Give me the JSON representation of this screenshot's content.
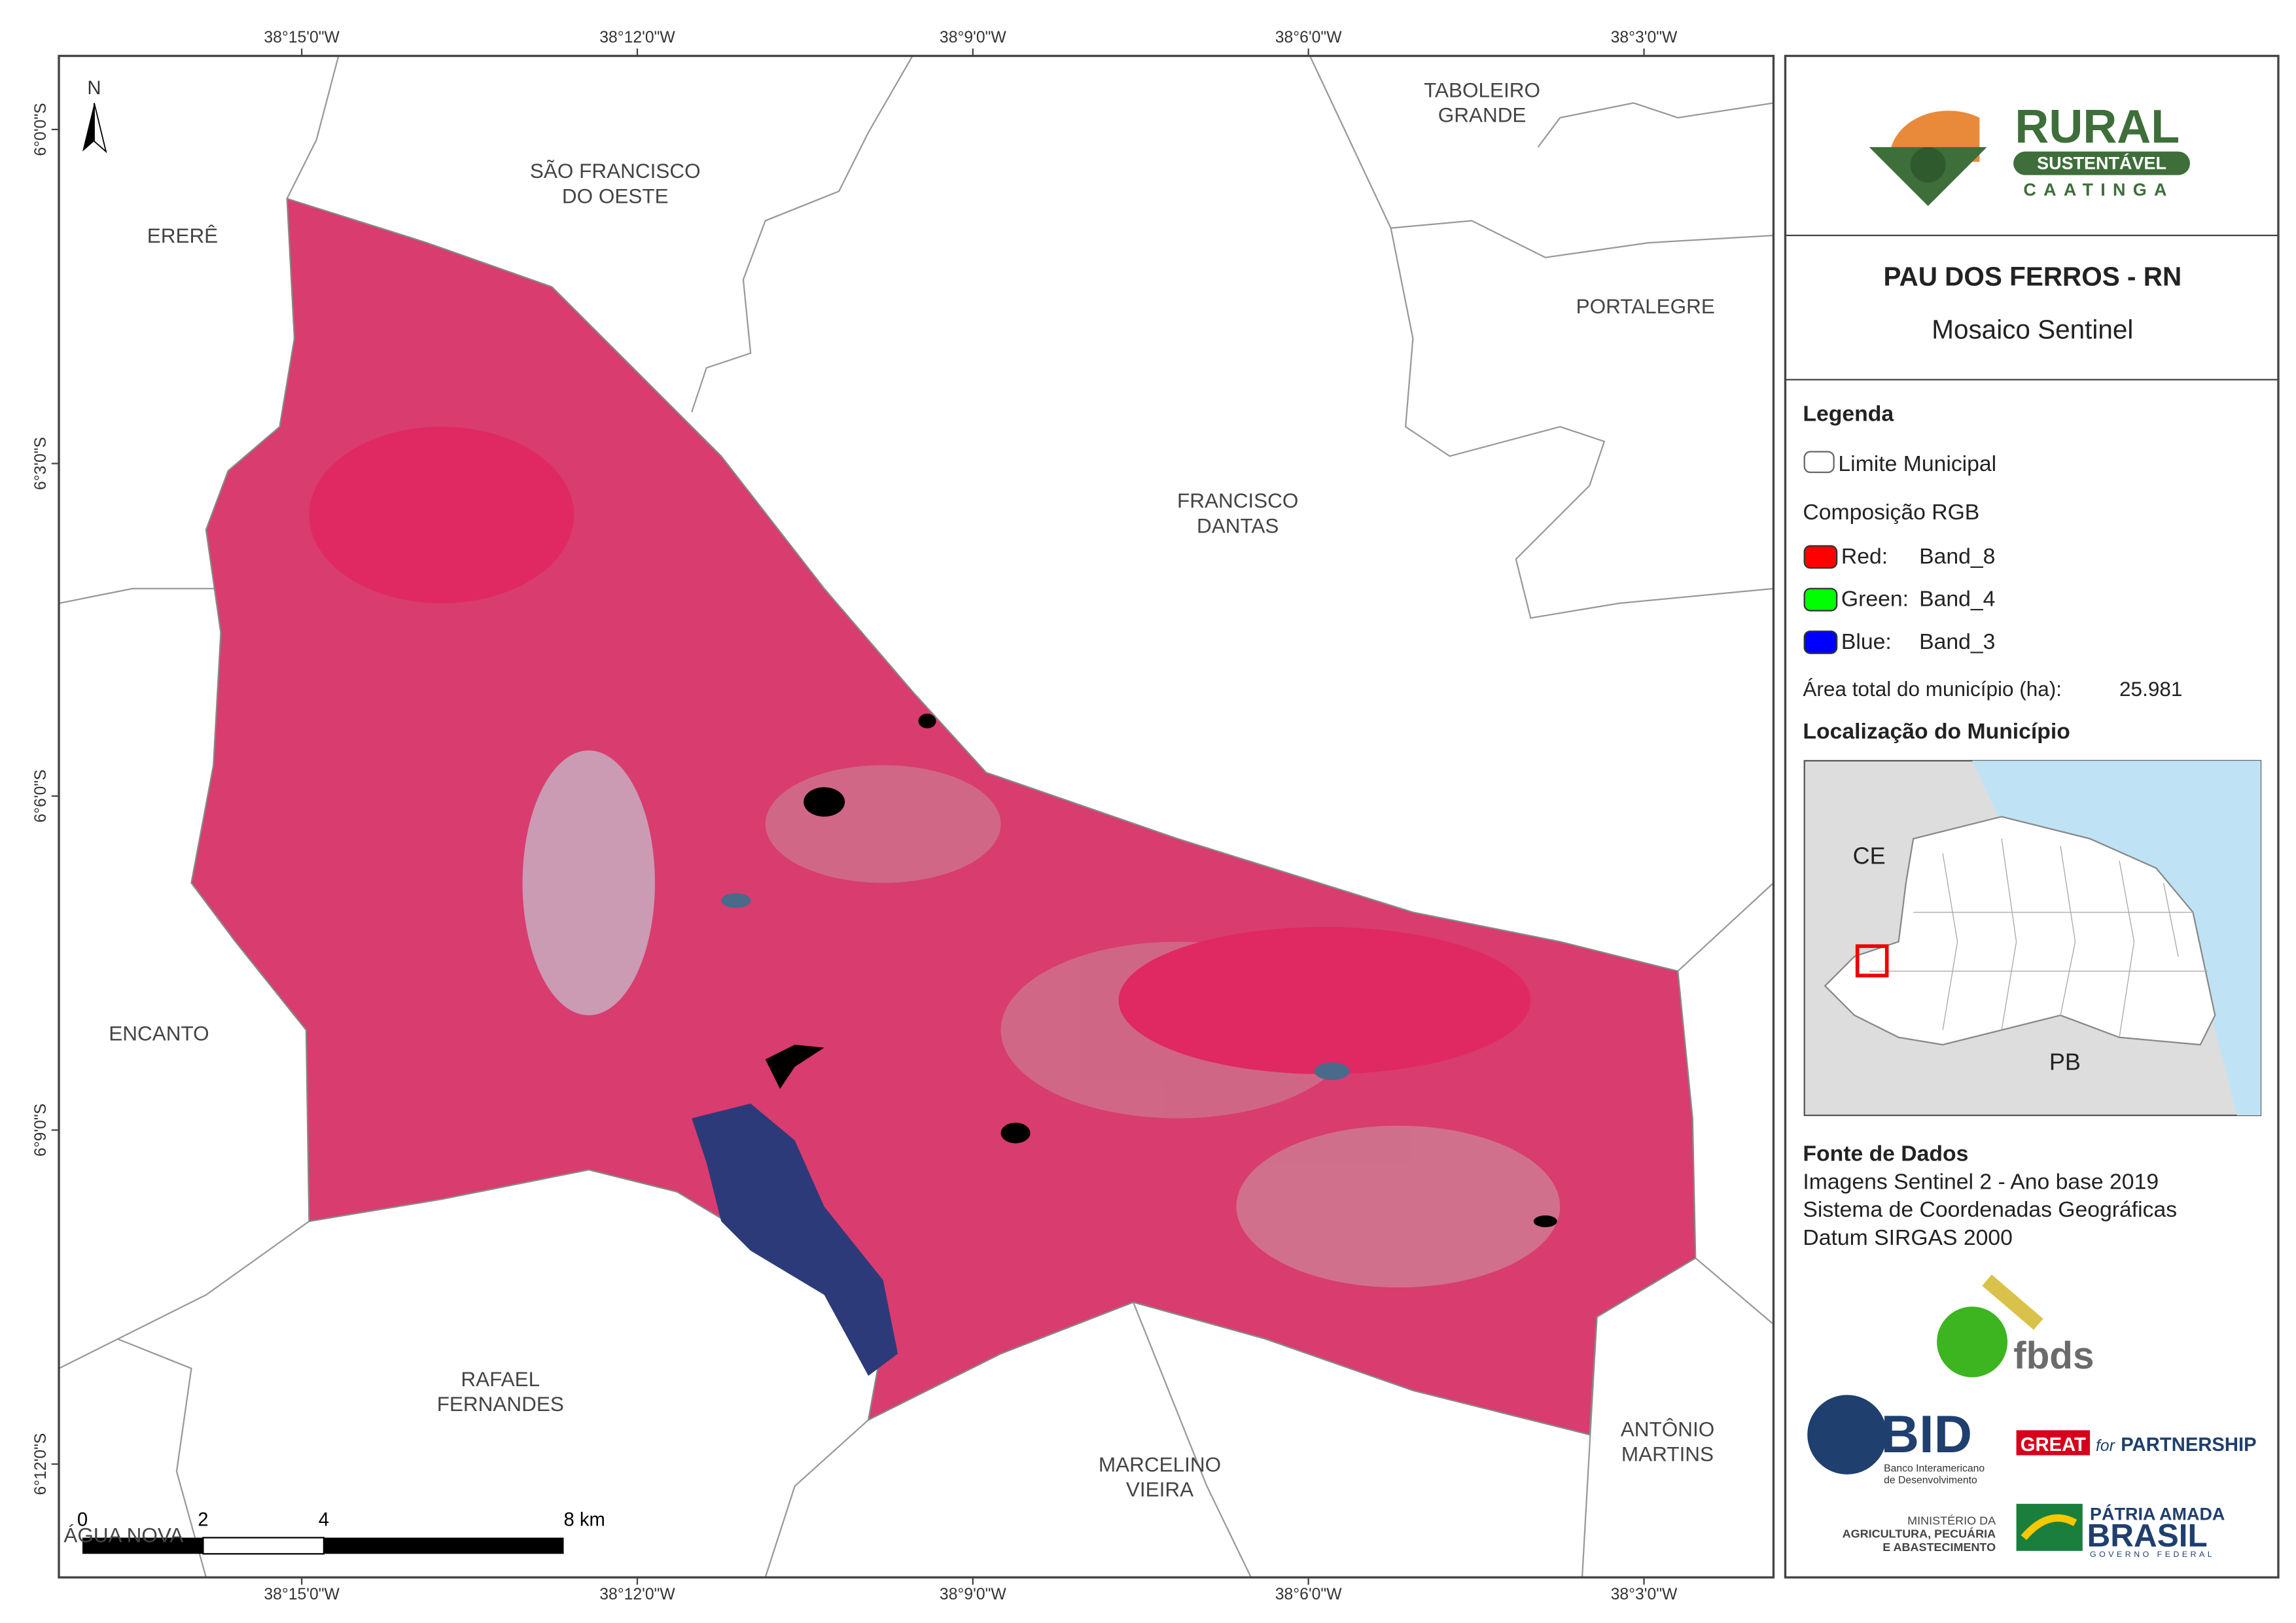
{
  "map": {
    "graticule": {
      "top": [
        "38°15'0\"W",
        "38°12'0\"W",
        "38°9'0\"W",
        "38°6'0\"W",
        "38°3'0\"W"
      ],
      "bottom": [
        "38°15'0\"W",
        "38°12'0\"W",
        "38°9'0\"W",
        "38°6'0\"W",
        "38°3'0\"W"
      ],
      "left": [
        "6°0'0\"S",
        "6°3'0\"S",
        "6°6'0\"S",
        "6°9'0\"S",
        "6°12'0\"S"
      ]
    },
    "north": "N",
    "places": [
      {
        "lines": [
          "TABOLEIRO",
          "GRANDE"
        ]
      },
      {
        "lines": [
          "SÃO FRANCISCO",
          "DO OESTE"
        ]
      },
      {
        "lines": [
          "ERERÊ"
        ]
      },
      {
        "lines": [
          "PORTALEGRE"
        ]
      },
      {
        "lines": [
          "FRANCISCO",
          "DANTAS"
        ]
      },
      {
        "lines": [
          "ENCANTO"
        ]
      },
      {
        "lines": [
          "RAFAEL",
          "FERNANDES"
        ]
      },
      {
        "lines": [
          "MARCELINO",
          "VIEIRA"
        ]
      },
      {
        "lines": [
          "ANTÔNIO",
          "MARTINS"
        ]
      },
      {
        "lines": [
          "ÁGUA NOVA"
        ]
      }
    ],
    "scale_bar": [
      "0",
      "2",
      "4",
      "8 km"
    ]
  },
  "panel": {
    "logo": {
      "title": "RURAL",
      "subtitle": "SUSTENTÁVEL",
      "tagline": "CAATINGA"
    },
    "title": "PAU DOS FERROS - RN",
    "subtitle": "Mosaico Sentinel",
    "legend": {
      "heading": "Legenda",
      "boundary": "Limite Municipal",
      "composition": "Composição RGB",
      "bands": [
        {
          "channel": "Red:",
          "band": "Band_8",
          "color": "#ff0000"
        },
        {
          "channel": "Green:",
          "band": "Band_4",
          "color": "#00ff00"
        },
        {
          "channel": "Blue:",
          "band": "Band_3",
          "color": "#0000ff"
        }
      ],
      "area_label": "Área total do município (ha):",
      "area_value": "25.981"
    },
    "location": {
      "heading": "Localização do Município",
      "labels": [
        "CE",
        "PB"
      ]
    },
    "sources": {
      "heading": "Fonte de Dados",
      "lines": [
        "Imagens Sentinel 2 - Ano base 2019",
        "Sistema de Coordenadas Geográficas",
        "Datum SIRGAS 2000"
      ]
    },
    "partners": {
      "fbds": "fbds",
      "bid": "BID",
      "bid_name": [
        "Banco Interamericano",
        "de Desenvolvimento"
      ],
      "great": "GREAT",
      "great_for": "for",
      "great_partnership": "PARTNERSHIP",
      "ministry": [
        "MINISTÉRIO DA",
        "AGRICULTURA, PECUÁRIA",
        "E ABASTECIMENTO"
      ],
      "brasil_top": "PÁTRIA AMADA",
      "brasil": "BRASIL",
      "brasil_sub": "GOVERNO FEDERAL"
    }
  }
}
